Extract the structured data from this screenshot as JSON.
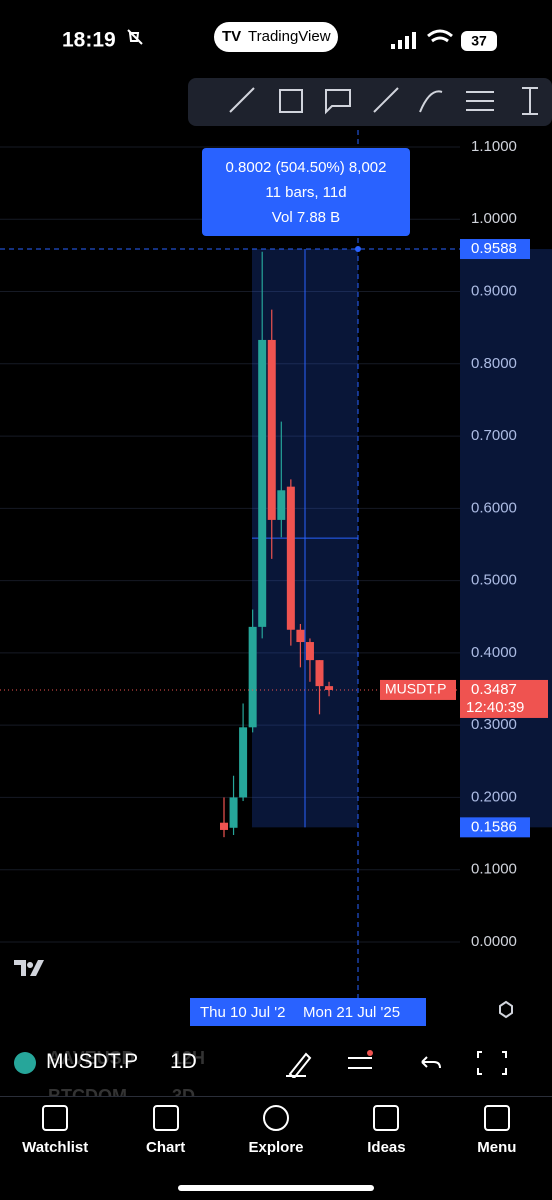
{
  "status_bar": {
    "time": "18:19",
    "app": "TradingView",
    "battery": "37"
  },
  "chart_data": {
    "type": "candlestick",
    "categories": [
      null,
      null,
      null,
      null,
      null,
      null,
      null,
      null,
      null,
      null,
      null,
      null
    ],
    "open": [
      0.165,
      0.158,
      0.2,
      0.297,
      0.436,
      0.833,
      0.584,
      0.63,
      0.432,
      0.415,
      0.39,
      0.354
    ],
    "high": [
      0.2,
      0.23,
      0.33,
      0.46,
      0.955,
      0.875,
      0.72,
      0.64,
      0.44,
      0.42,
      0.39,
      0.36
    ],
    "low": [
      0.145,
      0.148,
      0.195,
      0.29,
      0.42,
      0.53,
      0.56,
      0.41,
      0.38,
      0.36,
      0.315,
      0.34
    ],
    "close": [
      0.155,
      0.2,
      0.297,
      0.436,
      0.833,
      0.584,
      0.625,
      0.432,
      0.415,
      0.39,
      0.354,
      0.3487
    ],
    "up_color": "#26a69a",
    "down_color": "#ef5350",
    "ylim": [
      -0.0803,
      1.1235
    ],
    "yticks": [
      {
        "value": 0,
        "label": "0.0000"
      },
      {
        "value": 0.1,
        "label": "0.1000"
      },
      {
        "value": 0.2,
        "label": "0.2000"
      },
      {
        "value": 0.3,
        "label": "0.3000"
      },
      {
        "value": 0.4,
        "label": "0.4000"
      },
      {
        "value": 0.5,
        "label": "0.5000"
      },
      {
        "value": 0.6,
        "label": "0.6000"
      },
      {
        "value": 0.7,
        "label": "0.7000"
      },
      {
        "value": 0.8,
        "label": "0.8000"
      },
      {
        "value": 0.9,
        "label": "0.9000"
      },
      {
        "value": 1.0,
        "label": "1.0000"
      },
      {
        "value": 1.1,
        "label": "1.1000"
      }
    ],
    "grid": true,
    "price_line": {
      "symbol": "MUSDT.P",
      "value": 0.3487,
      "countdown": "12:40:39"
    },
    "measure": {
      "lines": [
        "0.8002 (504.50%) 8,002",
        "11 bars, 11d",
        "Vol 7.88 B"
      ],
      "high": 0.9588,
      "low": 0.1586
    },
    "x_labels": [
      "Thu 10 Jul '2",
      "Mon 21 Jul '25"
    ]
  },
  "toolbar": {
    "symbol": "MUSDT.P",
    "interval": "1D",
    "ghost": [
      "AAVEUSD",
      "12H",
      "BTCDOM",
      "3D"
    ]
  },
  "nav": [
    "Watchlist",
    "Chart",
    "Explore",
    "Ideas",
    "Menu"
  ]
}
